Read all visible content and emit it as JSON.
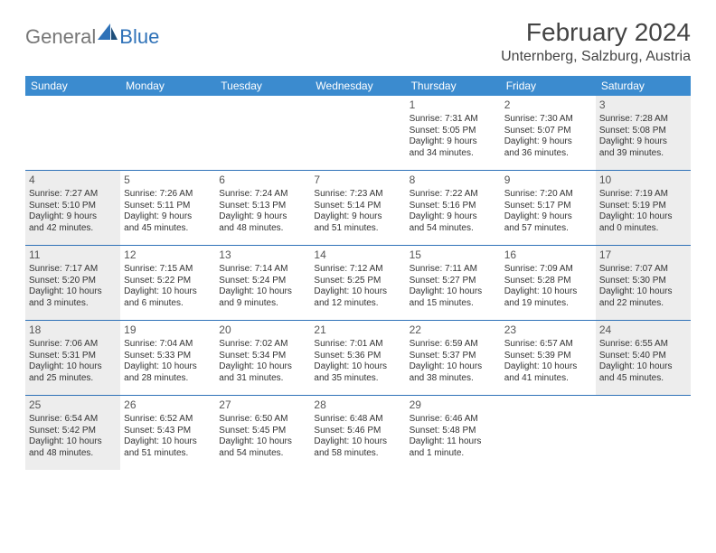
{
  "logo": {
    "text1": "General",
    "text2": "Blue"
  },
  "title": "February 2024",
  "location": "Unternberg, Salzburg, Austria",
  "colors": {
    "header_bg": "#3b8bcf",
    "header_text": "#ffffff",
    "border": "#2f72b8",
    "shade": "#ededed",
    "text": "#333333",
    "logo_gray": "#777777",
    "logo_blue": "#2f72b8"
  },
  "day_names": [
    "Sunday",
    "Monday",
    "Tuesday",
    "Wednesday",
    "Thursday",
    "Friday",
    "Saturday"
  ],
  "weeks": [
    [
      {
        "blank": true
      },
      {
        "blank": true
      },
      {
        "blank": true
      },
      {
        "blank": true
      },
      {
        "day": "1",
        "sunrise": "Sunrise: 7:31 AM",
        "sunset": "Sunset: 5:05 PM",
        "d1": "Daylight: 9 hours",
        "d2": "and 34 minutes."
      },
      {
        "day": "2",
        "sunrise": "Sunrise: 7:30 AM",
        "sunset": "Sunset: 5:07 PM",
        "d1": "Daylight: 9 hours",
        "d2": "and 36 minutes."
      },
      {
        "day": "3",
        "sunrise": "Sunrise: 7:28 AM",
        "sunset": "Sunset: 5:08 PM",
        "d1": "Daylight: 9 hours",
        "d2": "and 39 minutes.",
        "shaded": true
      }
    ],
    [
      {
        "day": "4",
        "sunrise": "Sunrise: 7:27 AM",
        "sunset": "Sunset: 5:10 PM",
        "d1": "Daylight: 9 hours",
        "d2": "and 42 minutes.",
        "shaded": true
      },
      {
        "day": "5",
        "sunrise": "Sunrise: 7:26 AM",
        "sunset": "Sunset: 5:11 PM",
        "d1": "Daylight: 9 hours",
        "d2": "and 45 minutes."
      },
      {
        "day": "6",
        "sunrise": "Sunrise: 7:24 AM",
        "sunset": "Sunset: 5:13 PM",
        "d1": "Daylight: 9 hours",
        "d2": "and 48 minutes."
      },
      {
        "day": "7",
        "sunrise": "Sunrise: 7:23 AM",
        "sunset": "Sunset: 5:14 PM",
        "d1": "Daylight: 9 hours",
        "d2": "and 51 minutes."
      },
      {
        "day": "8",
        "sunrise": "Sunrise: 7:22 AM",
        "sunset": "Sunset: 5:16 PM",
        "d1": "Daylight: 9 hours",
        "d2": "and 54 minutes."
      },
      {
        "day": "9",
        "sunrise": "Sunrise: 7:20 AM",
        "sunset": "Sunset: 5:17 PM",
        "d1": "Daylight: 9 hours",
        "d2": "and 57 minutes."
      },
      {
        "day": "10",
        "sunrise": "Sunrise: 7:19 AM",
        "sunset": "Sunset: 5:19 PM",
        "d1": "Daylight: 10 hours",
        "d2": "and 0 minutes.",
        "shaded": true
      }
    ],
    [
      {
        "day": "11",
        "sunrise": "Sunrise: 7:17 AM",
        "sunset": "Sunset: 5:20 PM",
        "d1": "Daylight: 10 hours",
        "d2": "and 3 minutes.",
        "shaded": true
      },
      {
        "day": "12",
        "sunrise": "Sunrise: 7:15 AM",
        "sunset": "Sunset: 5:22 PM",
        "d1": "Daylight: 10 hours",
        "d2": "and 6 minutes."
      },
      {
        "day": "13",
        "sunrise": "Sunrise: 7:14 AM",
        "sunset": "Sunset: 5:24 PM",
        "d1": "Daylight: 10 hours",
        "d2": "and 9 minutes."
      },
      {
        "day": "14",
        "sunrise": "Sunrise: 7:12 AM",
        "sunset": "Sunset: 5:25 PM",
        "d1": "Daylight: 10 hours",
        "d2": "and 12 minutes."
      },
      {
        "day": "15",
        "sunrise": "Sunrise: 7:11 AM",
        "sunset": "Sunset: 5:27 PM",
        "d1": "Daylight: 10 hours",
        "d2": "and 15 minutes."
      },
      {
        "day": "16",
        "sunrise": "Sunrise: 7:09 AM",
        "sunset": "Sunset: 5:28 PM",
        "d1": "Daylight: 10 hours",
        "d2": "and 19 minutes."
      },
      {
        "day": "17",
        "sunrise": "Sunrise: 7:07 AM",
        "sunset": "Sunset: 5:30 PM",
        "d1": "Daylight: 10 hours",
        "d2": "and 22 minutes.",
        "shaded": true
      }
    ],
    [
      {
        "day": "18",
        "sunrise": "Sunrise: 7:06 AM",
        "sunset": "Sunset: 5:31 PM",
        "d1": "Daylight: 10 hours",
        "d2": "and 25 minutes.",
        "shaded": true
      },
      {
        "day": "19",
        "sunrise": "Sunrise: 7:04 AM",
        "sunset": "Sunset: 5:33 PM",
        "d1": "Daylight: 10 hours",
        "d2": "and 28 minutes."
      },
      {
        "day": "20",
        "sunrise": "Sunrise: 7:02 AM",
        "sunset": "Sunset: 5:34 PM",
        "d1": "Daylight: 10 hours",
        "d2": "and 31 minutes."
      },
      {
        "day": "21",
        "sunrise": "Sunrise: 7:01 AM",
        "sunset": "Sunset: 5:36 PM",
        "d1": "Daylight: 10 hours",
        "d2": "and 35 minutes."
      },
      {
        "day": "22",
        "sunrise": "Sunrise: 6:59 AM",
        "sunset": "Sunset: 5:37 PM",
        "d1": "Daylight: 10 hours",
        "d2": "and 38 minutes."
      },
      {
        "day": "23",
        "sunrise": "Sunrise: 6:57 AM",
        "sunset": "Sunset: 5:39 PM",
        "d1": "Daylight: 10 hours",
        "d2": "and 41 minutes."
      },
      {
        "day": "24",
        "sunrise": "Sunrise: 6:55 AM",
        "sunset": "Sunset: 5:40 PM",
        "d1": "Daylight: 10 hours",
        "d2": "and 45 minutes.",
        "shaded": true
      }
    ],
    [
      {
        "day": "25",
        "sunrise": "Sunrise: 6:54 AM",
        "sunset": "Sunset: 5:42 PM",
        "d1": "Daylight: 10 hours",
        "d2": "and 48 minutes.",
        "shaded": true
      },
      {
        "day": "26",
        "sunrise": "Sunrise: 6:52 AM",
        "sunset": "Sunset: 5:43 PM",
        "d1": "Daylight: 10 hours",
        "d2": "and 51 minutes."
      },
      {
        "day": "27",
        "sunrise": "Sunrise: 6:50 AM",
        "sunset": "Sunset: 5:45 PM",
        "d1": "Daylight: 10 hours",
        "d2": "and 54 minutes."
      },
      {
        "day": "28",
        "sunrise": "Sunrise: 6:48 AM",
        "sunset": "Sunset: 5:46 PM",
        "d1": "Daylight: 10 hours",
        "d2": "and 58 minutes."
      },
      {
        "day": "29",
        "sunrise": "Sunrise: 6:46 AM",
        "sunset": "Sunset: 5:48 PM",
        "d1": "Daylight: 11 hours",
        "d2": "and 1 minute."
      },
      {
        "blank": true
      },
      {
        "blank": true
      }
    ]
  ]
}
